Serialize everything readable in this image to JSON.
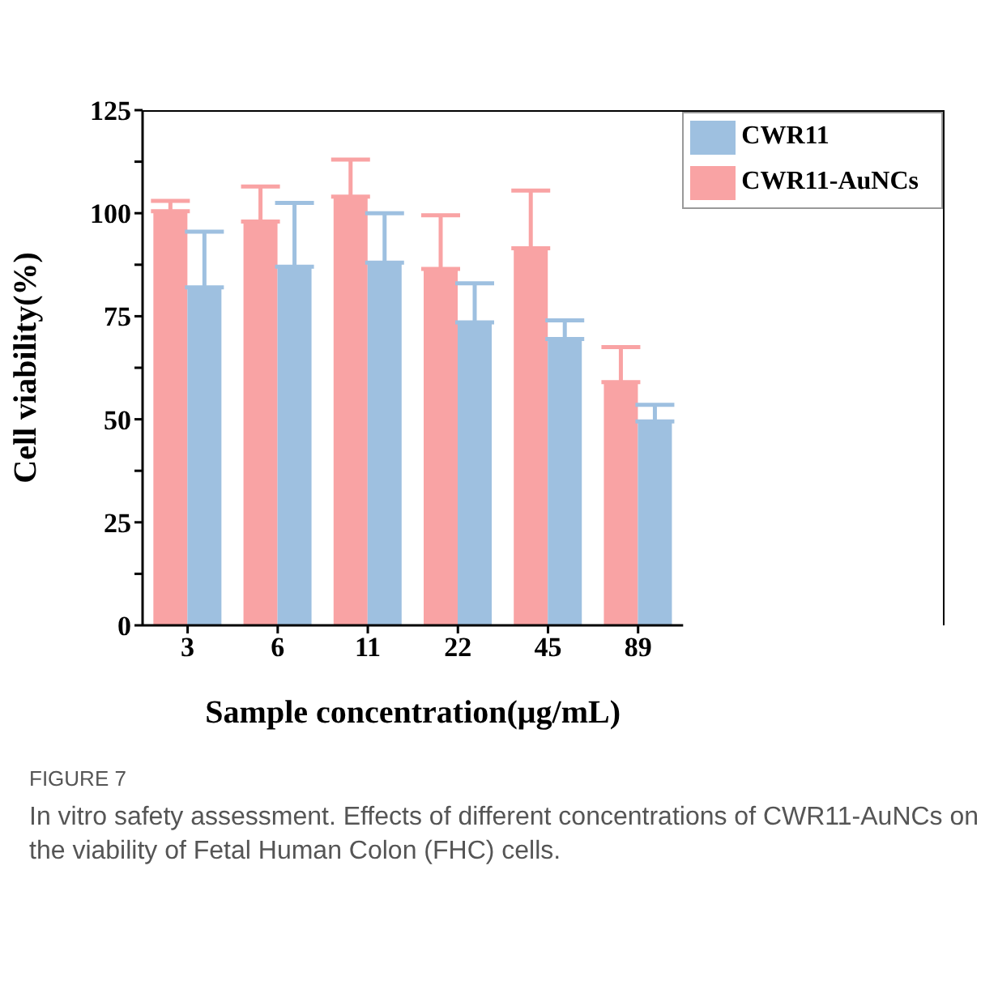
{
  "chart_data": {
    "type": "bar",
    "xlabel": "Sample concentration(μg/mL)",
    "ylabel": "Cell viability(%)",
    "categories": [
      "3",
      "6",
      "11",
      "22",
      "45",
      "89"
    ],
    "series": [
      {
        "name": "CWR11-AuNCs",
        "color": "#f9a3a4",
        "values": [
          100.5,
          98,
          104,
          86.5,
          91.5,
          59
        ],
        "errors": [
          [
            100.5,
            103
          ],
          [
            98,
            106.5
          ],
          [
            104,
            113
          ],
          [
            86.5,
            99.5
          ],
          [
            91.5,
            105.5
          ],
          [
            59,
            67.5
          ]
        ]
      },
      {
        "name": "CWR11",
        "color": "#9ec0e0",
        "values": [
          82,
          87,
          88,
          73.5,
          69.5,
          49.5
        ],
        "errors": [
          [
            82,
            95.5
          ],
          [
            87,
            102.5
          ],
          [
            88,
            100
          ],
          [
            73.5,
            83
          ],
          [
            69.5,
            74
          ],
          [
            49.5,
            53.5
          ]
        ]
      }
    ],
    "ylim": [
      0,
      125
    ],
    "yticks": [
      0,
      {
        "value": 12.5,
        "label": null
      },
      25,
      {
        "value": 37.5,
        "label": null
      },
      50,
      {
        "value": 62.5,
        "label": null
      },
      75,
      {
        "value": 87.5,
        "label": null
      },
      100,
      {
        "value": 112.5,
        "label": null
      },
      125
    ],
    "legend": "top right",
    "grid": false,
    "annotations": [
      "FIGURE 7",
      "In vitro safety assessment. Effects of different concentrations of CWR11-AuNCs on the viability of Fetal Human Colon (FHC) cells."
    ]
  }
}
